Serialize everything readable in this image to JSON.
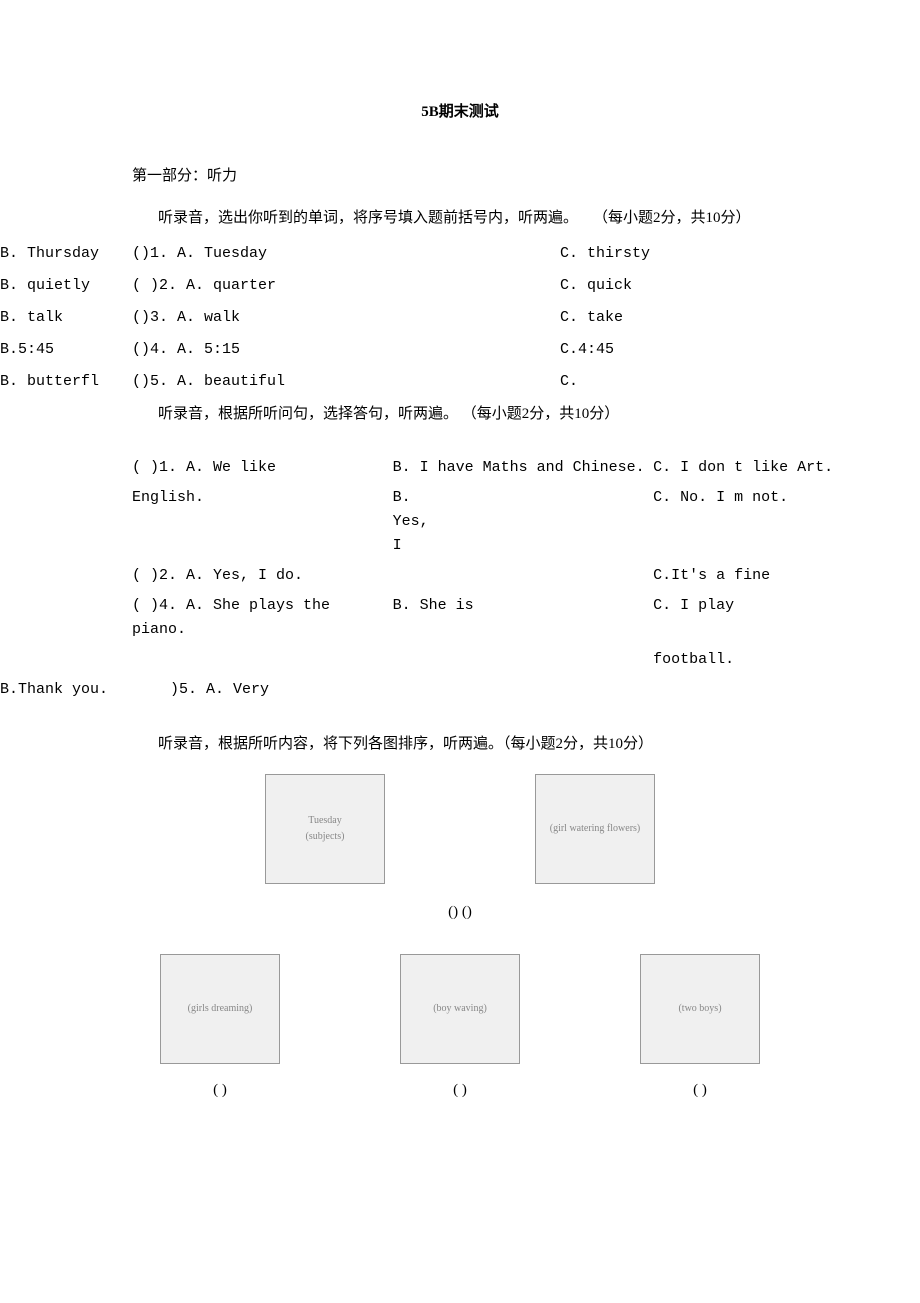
{
  "title": "5B期末测试",
  "section1": {
    "header": "第一部分：听力",
    "instruction": "听录音，选出你听到的单词，将序号填入题前括号内，听两遍。　　（每小题2分，共10分）",
    "items": [
      {
        "b": "B. Thursday",
        "a": "()1. A. Tuesday",
        "c": "C. thirsty"
      },
      {
        "b": "B. quietly",
        "a": "(   )2. A. quarter",
        "c": "C. quick"
      },
      {
        "b": "B. talk",
        "a": "()3. A. walk",
        "c": "C. take"
      },
      {
        "b": "B.5:45",
        "a": "()4. A. 5:15",
        "c": "C.4:45"
      },
      {
        "b": "B. butterfl",
        "a": "()5. A. beautiful",
        "c": "C."
      }
    ]
  },
  "section2": {
    "instruction": "听录音，根据所听问句，选择答句，听两遍。 （每小题2分，共10分）",
    "rows": [
      {
        "a": "(   )1. A. We like",
        "b": "B. I have Maths and Chinese.",
        "c": "C. I don t like Art."
      },
      {
        "a": "English.",
        "b": "",
        "c": ""
      },
      {
        "a": "(   )2. A. Yes, I do.",
        "b": "B.\nYes,\nI",
        "c": "C. No. I m not."
      },
      {
        "a": "",
        "b": "",
        "c": "C.It's a fine"
      },
      {
        "a": "(   )4. A. She plays the piano.",
        "b": "B. She is",
        "c": "C. I play"
      },
      {
        "a": "",
        "b": "",
        "c": "football."
      }
    ],
    "lastRow": {
      "b": "B.Thank you.",
      "a": ")5. A. Very"
    }
  },
  "section3": {
    "instruction": "听录音，根据所听内容，将下列各图排序，听两遍。（每小题2分，共10分）",
    "row1_caption": "() ()",
    "row2_captions": [
      "( )",
      "( )",
      "( )"
    ],
    "placeholders": {
      "tuesday": "Tuesday\n(subjects)",
      "flower": "(girl watering flowers)",
      "dream": "(girls dreaming)",
      "boy": "(boy waving)",
      "two": "(two boys)"
    }
  }
}
